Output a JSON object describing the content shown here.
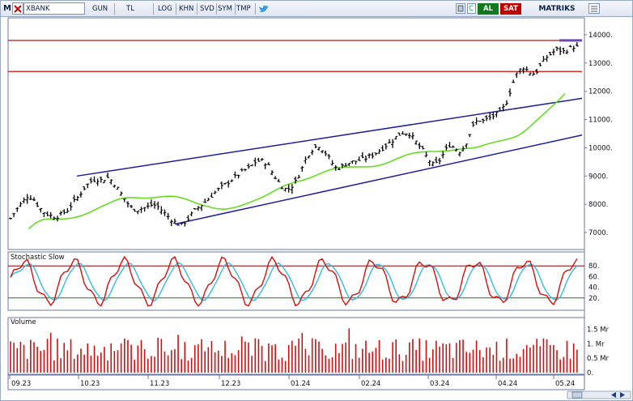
{
  "toolbar": {
    "symbol": "XBANK",
    "period": "GUN",
    "currency": "TL",
    "buttons": [
      "LOG",
      "KHN",
      "SVD",
      "SYM",
      "TMP"
    ],
    "al_label": "AL",
    "sat_label": "SAT",
    "brand": "MATRIKS",
    "prefix": "M"
  },
  "panels": {
    "stoch_label": "Stochastic Slow",
    "volume_label": "Volume"
  },
  "price_axis": [
    "14000.",
    "13000.",
    "12000.",
    "11000.",
    "10000.",
    "9000.",
    "8000.",
    "7000."
  ],
  "stoch_axis": [
    "80.",
    "60.",
    "40.",
    "20."
  ],
  "volume_axis": [
    "1.5 Mr",
    "1. Mr",
    "0.5 Mr",
    "0."
  ],
  "date_axis": [
    "09.23",
    "10.23",
    "11.23",
    "12.23",
    "01.24",
    "02.24",
    "03.24",
    "04.24",
    "05.24"
  ],
  "colors": {
    "candle": "#000000",
    "ma": "#66dd22",
    "channel": "#1e1e9e",
    "horizontal": "#cc1111",
    "stoch_k": "#d01010",
    "stoch_d": "#33bbdd",
    "volume": "#d01010"
  },
  "chart_data": {
    "type": "line",
    "price_ylim": [
      6400,
      14600
    ],
    "price_path": [
      7500,
      7800,
      8050,
      8300,
      8200,
      7900,
      7700,
      7600,
      7550,
      7650,
      7800,
      8050,
      8300,
      8600,
      8800,
      8900,
      8850,
      8950,
      8800,
      8500,
      8200,
      7900,
      7800,
      7850,
      7900,
      8000,
      7900,
      7700,
      7500,
      7350,
      7250,
      7450,
      7700,
      7900,
      8050,
      8250,
      8450,
      8600,
      8750,
      8900,
      9050,
      9200,
      9300,
      9500,
      9550,
      9450,
      9100,
      8800,
      8550,
      8550,
      8800,
      9200,
      9700,
      9950,
      10100,
      9900,
      9600,
      9300,
      9300,
      9450,
      9500,
      9550,
      9600,
      9700,
      9800,
      9950,
      10100,
      10250,
      10450,
      10550,
      10500,
      10250,
      10000,
      9700,
      9400,
      9450,
      9800,
      10100,
      10000,
      9850,
      10200,
      10700,
      11000,
      10950,
      11050,
      11150,
      11250,
      11600,
      12200,
      12700,
      12850,
      12700,
      12600,
      12900,
      13200,
      13350,
      13500,
      13400,
      13500,
      13600,
      13500
    ],
    "resistance_levels": [
      13800,
      12700
    ],
    "stoch_ylim": [
      0,
      100
    ],
    "stoch_levels": [
      80,
      20
    ],
    "volume_ylim": [
      0,
      1.8
    ]
  }
}
